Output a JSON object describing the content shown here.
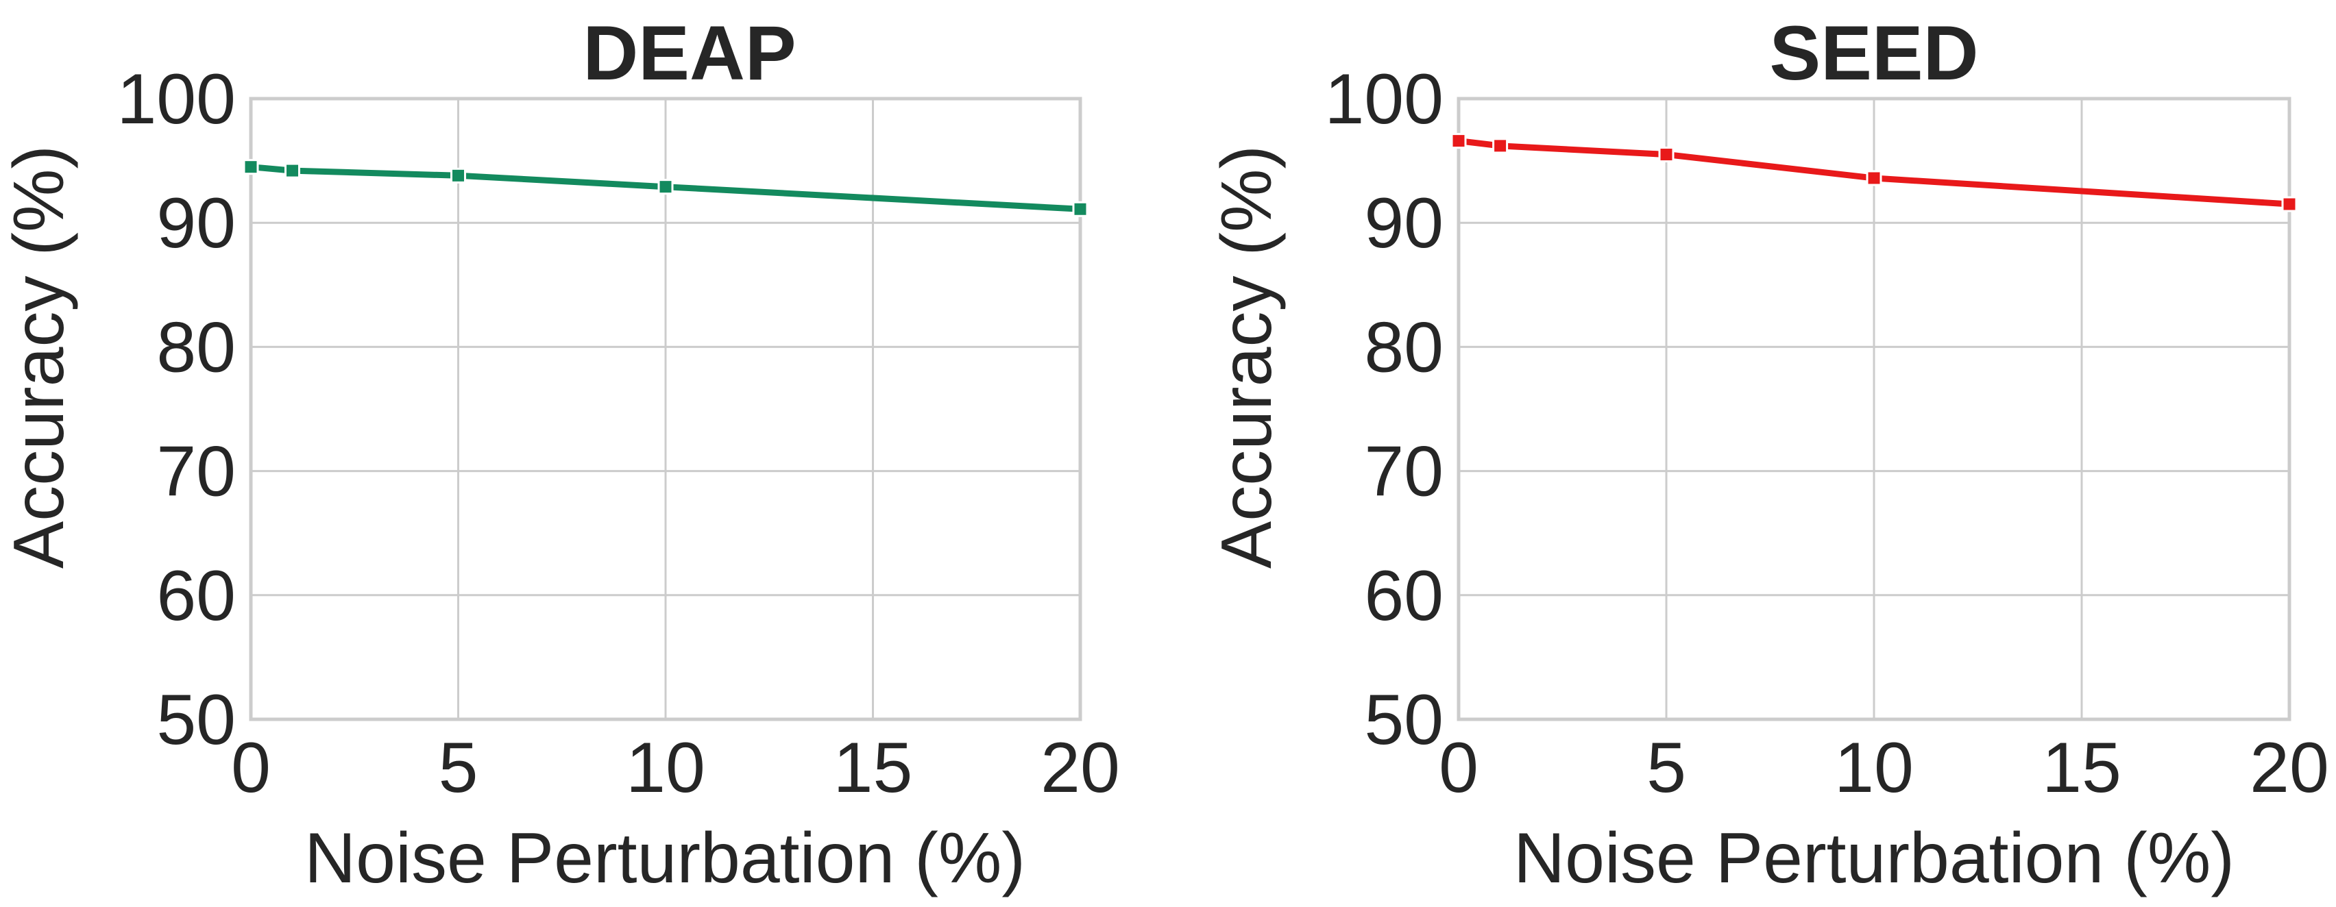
{
  "chart_data": [
    {
      "type": "line",
      "title": "DEAP",
      "xlabel": "Noise Perturbation (%)",
      "ylabel": "Accuracy (%)",
      "xlim": [
        0,
        20
      ],
      "ylim": [
        50,
        100
      ],
      "xticks": [
        0,
        5,
        10,
        15,
        20
      ],
      "yticks": [
        50,
        60,
        70,
        80,
        90,
        100
      ],
      "grid": true,
      "series": [
        {
          "name": "DEAP",
          "color": "#138A5E",
          "marker": "square",
          "x": [
            0,
            1,
            5,
            10,
            20
          ],
          "y": [
            94.5,
            94.2,
            93.8,
            92.9,
            91.1
          ]
        }
      ]
    },
    {
      "type": "line",
      "title": "SEED",
      "xlabel": "Noise Perturbation (%)",
      "ylabel": "Accuracy (%)",
      "xlim": [
        0,
        20
      ],
      "ylim": [
        50,
        100
      ],
      "xticks": [
        0,
        5,
        10,
        15,
        20
      ],
      "yticks": [
        50,
        60,
        70,
        80,
        90,
        100
      ],
      "grid": true,
      "series": [
        {
          "name": "SEED",
          "color": "#E8191A",
          "marker": "square",
          "x": [
            0,
            1,
            5,
            10,
            20
          ],
          "y": [
            96.6,
            96.2,
            95.5,
            93.6,
            91.5
          ]
        }
      ]
    }
  ]
}
